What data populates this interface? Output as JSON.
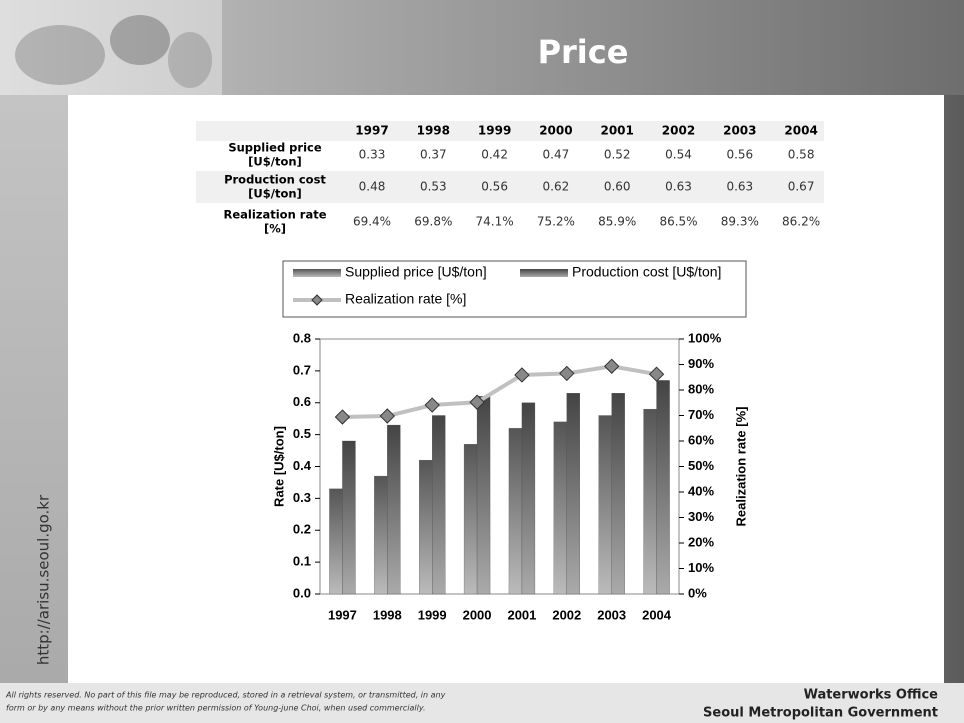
{
  "header": {
    "title": "Price"
  },
  "sidebar": {
    "url": "http://arisu.seoul.go.kr"
  },
  "table": {
    "columns": [
      "1997",
      "1998",
      "1999",
      "2000",
      "2001",
      "2002",
      "2003",
      "2004"
    ],
    "rows": [
      {
        "label": [
          "Supplied price",
          "[U$/ton]"
        ],
        "cells": [
          "0.33",
          "0.37",
          "0.42",
          "0.47",
          "0.52",
          "0.54",
          "0.56",
          "0.58"
        ]
      },
      {
        "label": [
          "Production cost",
          "[U$/ton]"
        ],
        "cells": [
          "0.48",
          "0.53",
          "0.56",
          "0.62",
          "0.60",
          "0.63",
          "0.63",
          "0.67"
        ]
      },
      {
        "label": [
          "Realization rate",
          "[%]"
        ],
        "cells": [
          "69.4%",
          "69.8%",
          "74.1%",
          "75.2%",
          "85.9%",
          "86.5%",
          "89.3%",
          "86.2%"
        ]
      }
    ]
  },
  "chart_data": {
    "type": "bar",
    "categories": [
      "1997",
      "1998",
      "1999",
      "2000",
      "2001",
      "2002",
      "2003",
      "2004"
    ],
    "series": [
      {
        "name": "Supplied price [U$/ton]",
        "color": "#555555",
        "values": [
          0.33,
          0.37,
          0.42,
          0.47,
          0.52,
          0.54,
          0.56,
          0.58
        ]
      },
      {
        "name": "Production cost [U$/ton]",
        "color": "#444444",
        "values": [
          0.48,
          0.53,
          0.56,
          0.62,
          0.6,
          0.63,
          0.63,
          0.67
        ]
      },
      {
        "name": "Realization rate [%]",
        "color": "#c0c0c0",
        "type": "line",
        "axis": "y2",
        "values": [
          69.4,
          69.8,
          74.1,
          75.2,
          85.9,
          86.5,
          89.3,
          86.2
        ]
      }
    ],
    "y_label": "Rate [U$/ton]",
    "y2_label": "Realization rate [%]",
    "ylim": [
      0,
      0.8
    ],
    "yticks": [
      {
        "value": 0,
        "label": "0.0"
      },
      0.1,
      0.2,
      0.3,
      0.4,
      0.5,
      0.6,
      0.7,
      0.8
    ],
    "y2lim": [
      0,
      100
    ],
    "y2ticks": [
      {
        "value": 0,
        "label": "0%"
      },
      {
        "value": 10,
        "label": "10%"
      },
      {
        "value": 20,
        "label": "20%"
      },
      {
        "value": 30,
        "label": "30%"
      },
      {
        "value": 40,
        "label": "40%"
      },
      {
        "value": 50,
        "label": "50%"
      },
      {
        "value": 60,
        "label": "60%"
      },
      {
        "value": 70,
        "label": "70%"
      },
      {
        "value": 80,
        "label": "80%"
      },
      {
        "value": 90,
        "label": "90%"
      },
      {
        "value": 100,
        "label": "100%"
      }
    ],
    "legend": "top"
  },
  "footer": {
    "notice": [
      "All rights reserved. No part of this file may be reproduced, stored in a retrieval system, or transmitted, in any",
      "form or by any means without the prior written permission of Young-june Choi, when used commercially."
    ],
    "org": [
      "Waterworks Office",
      "Seoul Metropolitan Government"
    ]
  }
}
